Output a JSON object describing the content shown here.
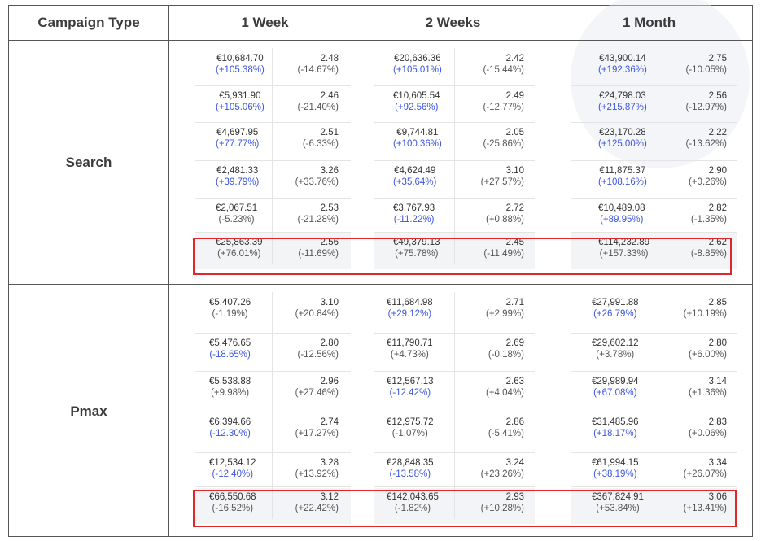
{
  "header": {
    "campaign_type": "Campaign Type",
    "week1": "1 Week",
    "week2": "2 Weeks",
    "month1": "1 Month"
  },
  "rows": {
    "search": {
      "label": "Search",
      "panels": [
        [
          {
            "v1": "€10,684.70",
            "c1": "(+105.38%)",
            "v2": "2.48",
            "c2": "(-14.67%)"
          },
          {
            "v1": "€5,931.90",
            "c1": "(+105.06%)",
            "v2": "2.46",
            "c2": "(-21.40%)"
          },
          {
            "v1": "€4,697.95",
            "c1": "(+77.77%)",
            "v2": "2.51",
            "c2": "(-6.33%)"
          },
          {
            "v1": "€2,481.33",
            "c1": "(+39.79%)",
            "v2": "3.26",
            "c2": "(+33.76%)"
          },
          {
            "v1": "€2,067.51",
            "c1": "(-5.23%)",
            "v2": "2.53",
            "c2": "(-21.28%)"
          },
          {
            "v1": "€25,863.39",
            "c1": "(+76.01%)",
            "v2": "2.56",
            "c2": "(-11.69%)"
          }
        ],
        [
          {
            "v1": "€20,636.36",
            "c1": "(+105.01%)",
            "v2": "2.42",
            "c2": "(-15.44%)"
          },
          {
            "v1": "€10,605.54",
            "c1": "(+92.56%)",
            "v2": "2.49",
            "c2": "(-12.77%)"
          },
          {
            "v1": "€9,744.81",
            "c1": "(+100.36%)",
            "v2": "2.05",
            "c2": "(-25.86%)"
          },
          {
            "v1": "€4,624.49",
            "c1": "(+35.64%)",
            "v2": "3.10",
            "c2": "(+27.57%)"
          },
          {
            "v1": "€3,767.93",
            "c1": "(-11.22%)",
            "v2": "2.72",
            "c2": "(+0.88%)"
          },
          {
            "v1": "€49,379.13",
            "c1": "(+75.78%)",
            "v2": "2.45",
            "c2": "(-11.49%)"
          }
        ],
        [
          {
            "v1": "€43,900.14",
            "c1": "(+192.36%)",
            "v2": "2.75",
            "c2": "(-10.05%)"
          },
          {
            "v1": "€24,798.03",
            "c1": "(+215.87%)",
            "v2": "2.56",
            "c2": "(-12.97%)"
          },
          {
            "v1": "€23,170.28",
            "c1": "(+125.00%)",
            "v2": "2.22",
            "c2": "(-13.62%)"
          },
          {
            "v1": "€11,875.37",
            "c1": "(+108.16%)",
            "v2": "2.90",
            "c2": "(+0.26%)"
          },
          {
            "v1": "€10,489.08",
            "c1": "(+89.95%)",
            "v2": "2.82",
            "c2": "(-1.35%)"
          },
          {
            "v1": "€114,232.89",
            "c1": "(+157.33%)",
            "v2": "2.62",
            "c2": "(-8.85%)"
          }
        ]
      ]
    },
    "pmax": {
      "label": "Pmax",
      "panels": [
        [
          {
            "v1": "€5,407.26",
            "c1": "(-1.19%)",
            "v2": "3.10",
            "c2": "(+20.84%)"
          },
          {
            "v1": "€5,476.65",
            "c1": "(-18.65%)",
            "v2": "2.80",
            "c2": "(-12.56%)"
          },
          {
            "v1": "€5,538.88",
            "c1": "(+9.98%)",
            "v2": "2.96",
            "c2": "(+27.46%)"
          },
          {
            "v1": "€6,394.66",
            "c1": "(-12.30%)",
            "v2": "2.74",
            "c2": "(+17.27%)"
          },
          {
            "v1": "€12,534.12",
            "c1": "(-12.40%)",
            "v2": "3.28",
            "c2": "(+13.92%)"
          },
          {
            "v1": "€66,550.68",
            "c1": "(-16.52%)",
            "v2": "3.12",
            "c2": "(+22.42%)"
          }
        ],
        [
          {
            "v1": "€11,684.98",
            "c1": "(+29.12%)",
            "v2": "2.71",
            "c2": "(+2.99%)"
          },
          {
            "v1": "€11,790.71",
            "c1": "(+4.73%)",
            "v2": "2.69",
            "c2": "(-0.18%)"
          },
          {
            "v1": "€12,567.13",
            "c1": "(-12.42%)",
            "v2": "2.63",
            "c2": "(+4.04%)"
          },
          {
            "v1": "€12,975.72",
            "c1": "(-1.07%)",
            "v2": "2.86",
            "c2": "(-5.41%)"
          },
          {
            "v1": "€28,848.35",
            "c1": "(-13.58%)",
            "v2": "3.24",
            "c2": "(+23.26%)"
          },
          {
            "v1": "€142,043.65",
            "c1": "(-1.82%)",
            "v2": "2.93",
            "c2": "(+10.28%)"
          }
        ],
        [
          {
            "v1": "€27,991.88",
            "c1": "(+26.79%)",
            "v2": "2.85",
            "c2": "(+10.19%)"
          },
          {
            "v1": "€29,602.12",
            "c1": "(+3.78%)",
            "v2": "2.80",
            "c2": "(+6.00%)"
          },
          {
            "v1": "€29,989.94",
            "c1": "(+67.08%)",
            "v2": "3.14",
            "c2": "(+1.36%)"
          },
          {
            "v1": "€31,485.96",
            "c1": "(+18.17%)",
            "v2": "2.83",
            "c2": "(+0.06%)"
          },
          {
            "v1": "€61,994.15",
            "c1": "(+38.19%)",
            "v2": "3.34",
            "c2": "(+26.07%)"
          },
          {
            "v1": "€367,824.91",
            "c1": "(+53.84%)",
            "v2": "3.06",
            "c2": "(+13.41%)"
          }
        ]
      ]
    }
  },
  "colors": {
    "blue_change": "#3b55e0",
    "gray_change": "#555555",
    "highlight_box": "#e0282c"
  },
  "blue_changes": {
    "search": [
      [
        true,
        true,
        true,
        true,
        false,
        false
      ],
      [
        true,
        true,
        true,
        true,
        true,
        false
      ],
      [
        true,
        true,
        true,
        true,
        true,
        false
      ]
    ],
    "pmax": [
      [
        false,
        true,
        false,
        true,
        true,
        false
      ],
      [
        true,
        false,
        true,
        false,
        true,
        false
      ],
      [
        true,
        false,
        true,
        true,
        true,
        false
      ]
    ]
  }
}
